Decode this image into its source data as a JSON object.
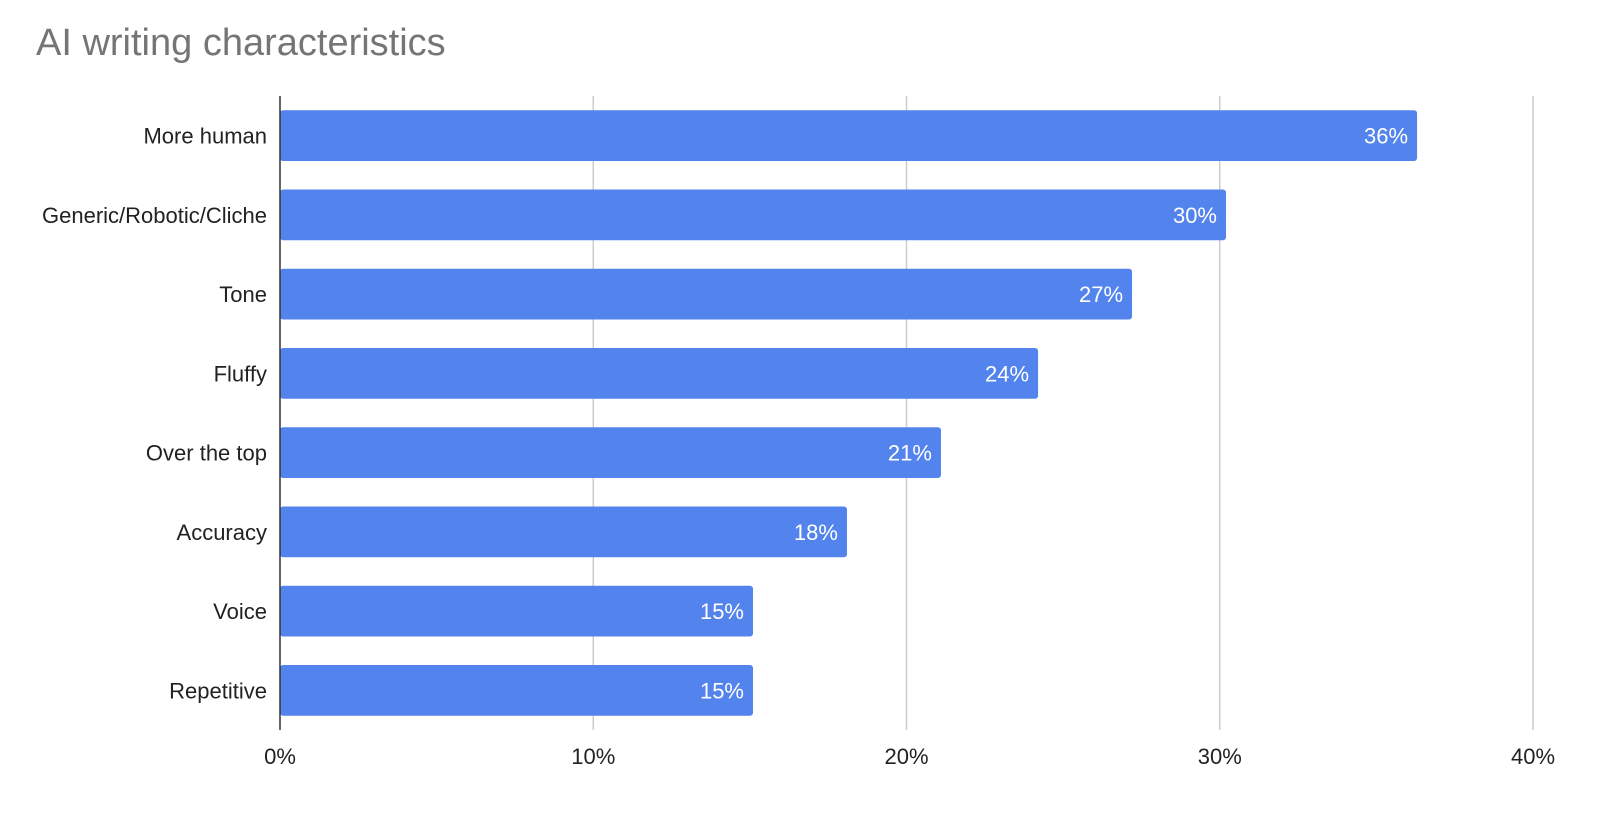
{
  "chart_data": {
    "type": "bar",
    "orientation": "horizontal",
    "title": "AI writing characteristics",
    "categories": [
      "More human",
      "Generic/Robotic/Cliche",
      "Tone",
      "Fluffy",
      "Over the top",
      "Accuracy",
      "Voice",
      "Repetitive"
    ],
    "values": [
      36.3,
      30.2,
      27.2,
      24.2,
      21.1,
      18.1,
      15.1,
      15.1
    ],
    "data_labels": [
      "36%",
      "30%",
      "27%",
      "24%",
      "21%",
      "18%",
      "15%",
      "15%"
    ],
    "xlim": [
      0,
      40
    ],
    "x_ticks": [
      0,
      10,
      20,
      30,
      40
    ],
    "x_tick_labels": [
      "0%",
      "10%",
      "20%",
      "30%",
      "40%"
    ],
    "grid": true,
    "legend": "none",
    "bar_color": "#5383ec",
    "gridline_color": "#cccccc",
    "axis_color": "#333333"
  }
}
